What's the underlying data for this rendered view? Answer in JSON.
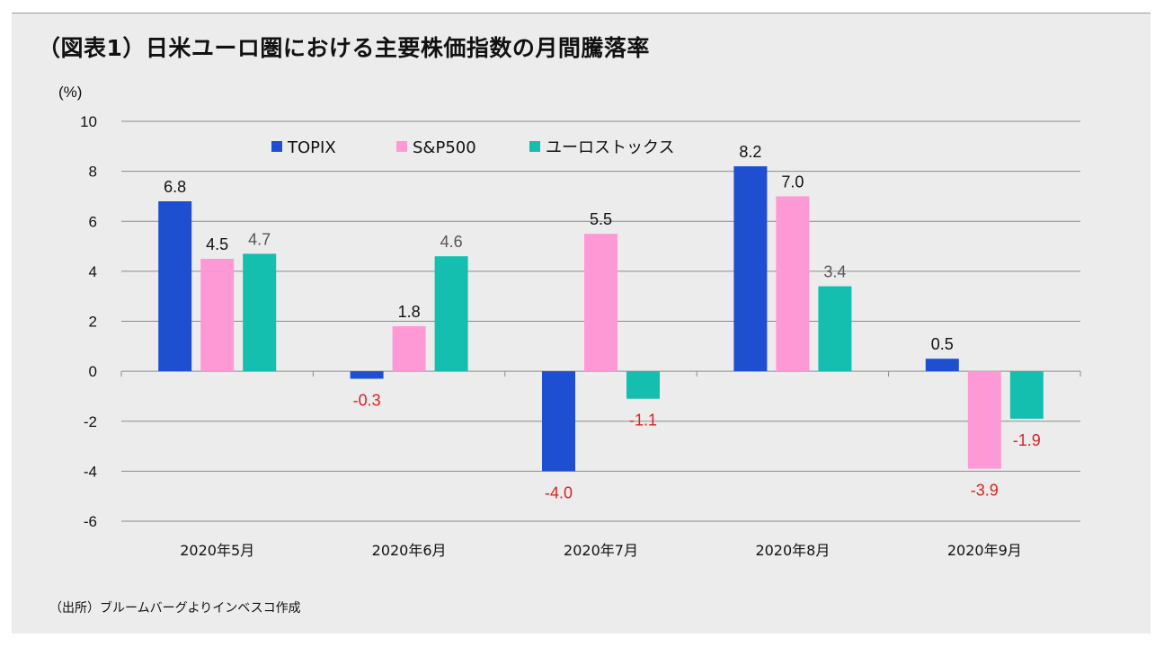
{
  "title": "（図表1）日米ユーロ圏における主要株価指数の月間騰落率",
  "source": "（出所）ブルームバーグよりインベスコ作成",
  "chart_data": {
    "type": "bar",
    "ylabel": "(%)",
    "ylim": [
      -6,
      10
    ],
    "yticks": [
      10,
      8,
      6,
      4,
      2,
      0,
      -2,
      -4,
      -6
    ],
    "grid": true,
    "legend_position": "top",
    "categories": [
      "2020年5月",
      "2020年6月",
      "2020年7月",
      "2020年8月",
      "2020年9月"
    ],
    "series": [
      {
        "name": "TOPIX",
        "color": "#1e4fd0",
        "values": [
          6.8,
          -0.3,
          -4.0,
          8.2,
          0.5
        ]
      },
      {
        "name": "S&P500",
        "color": "#ff99d6",
        "values": [
          4.5,
          1.8,
          5.5,
          7.0,
          -3.9
        ]
      },
      {
        "name": "ユーロストックス",
        "color": "#14bfb0",
        "values": [
          4.7,
          4.6,
          -1.1,
          3.4,
          -1.9
        ]
      }
    ],
    "data_labels": [
      [
        "6.8",
        "-0.3",
        "-4.0",
        "8.2",
        "0.5"
      ],
      [
        "4.5",
        "1.8",
        "5.5",
        "7.0",
        "-3.9"
      ],
      [
        "4.7",
        "4.6",
        "-1.1",
        "3.4",
        "-1.9"
      ]
    ],
    "label_colors": {
      "positive_primary": "#111111",
      "positive_secondary": "#555555",
      "negative": "#e02020"
    }
  }
}
